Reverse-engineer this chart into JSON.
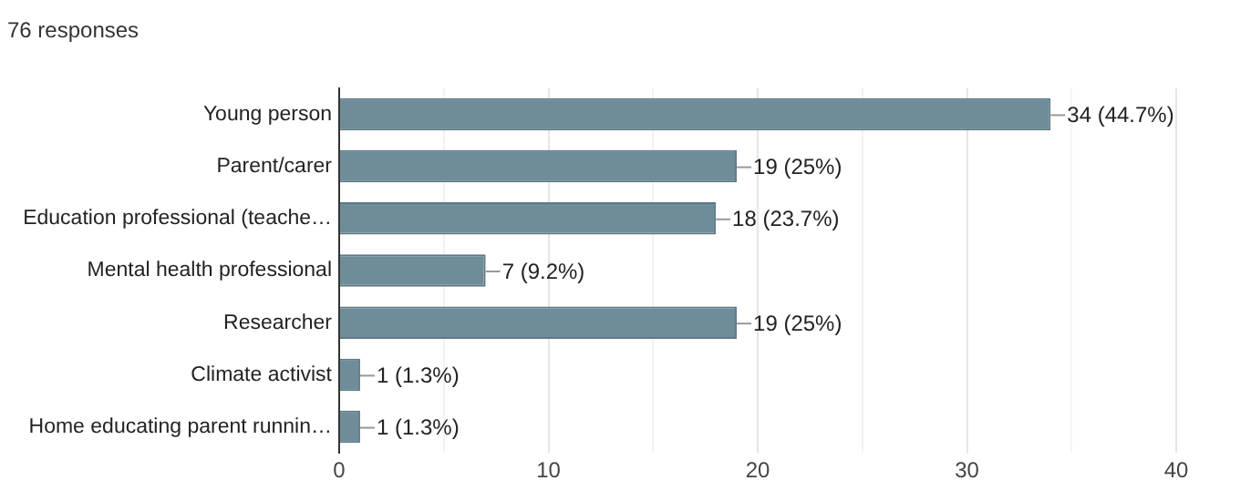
{
  "chart_data": {
    "type": "bar",
    "orientation": "horizontal",
    "title": "76 responses",
    "categories": [
      "Young person",
      "Parent/carer",
      "Education professional (teache…",
      "Mental health professional",
      "Researcher",
      "Climate activist",
      "Home educating parent runnin…"
    ],
    "values": [
      34,
      19,
      18,
      7,
      19,
      1,
      1
    ],
    "value_labels": [
      "34 (44.7%)",
      "19 (25%)",
      "18 (23.7%)",
      "7 (9.2%)",
      "19 (25%)",
      "1 (1.3%)",
      "1 (1.3%)"
    ],
    "color": "#6f8d99",
    "xlim": [
      0,
      40
    ],
    "xticks": [
      0,
      {
        "value": 5,
        "label": null
      },
      10,
      {
        "value": 15,
        "label": null
      },
      20,
      {
        "value": 25,
        "label": null
      },
      30,
      {
        "value": 35,
        "label": null
      },
      40
    ],
    "grid": "x",
    "legend": false
  }
}
